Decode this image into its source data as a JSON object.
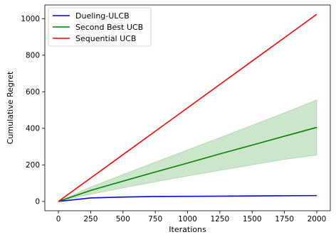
{
  "chart_data": {
    "type": "line",
    "xlabel": "Iterations",
    "ylabel": "Cumulative Regret",
    "xlim": [
      -105,
      2105
    ],
    "ylim": [
      -51,
      1075
    ],
    "xticks": [
      0,
      250,
      500,
      750,
      1000,
      1250,
      1500,
      1750,
      2000
    ],
    "yticks": [
      0,
      200,
      400,
      600,
      800,
      1000
    ],
    "grid": false,
    "legend_position": "top-left",
    "x": [
      0,
      250,
      500,
      750,
      1000,
      1250,
      1500,
      1750,
      2000
    ],
    "series": [
      {
        "name": "Dueling-ULCB",
        "color": "#0000ff",
        "values": [
          0,
          19,
          24,
          27,
          28,
          29,
          30,
          31,
          32
        ]
      },
      {
        "name": "Second Best UCB",
        "color": "#008000",
        "values": [
          0,
          60,
          111,
          161,
          210,
          260,
          308,
          357,
          405
        ],
        "band": {
          "lower": [
            0,
            39,
            74,
            107,
            139,
            170,
            200,
            230,
            253
          ],
          "upper": [
            0,
            79,
            147,
            215,
            282,
            349,
            417,
            485,
            555
          ],
          "color": "#008000",
          "opacity": 0.2
        }
      },
      {
        "name": "Sequential UCB",
        "color": "#ff0000",
        "values": [
          0,
          128,
          256,
          384,
          512,
          640,
          768,
          896,
          1024
        ]
      }
    ]
  }
}
